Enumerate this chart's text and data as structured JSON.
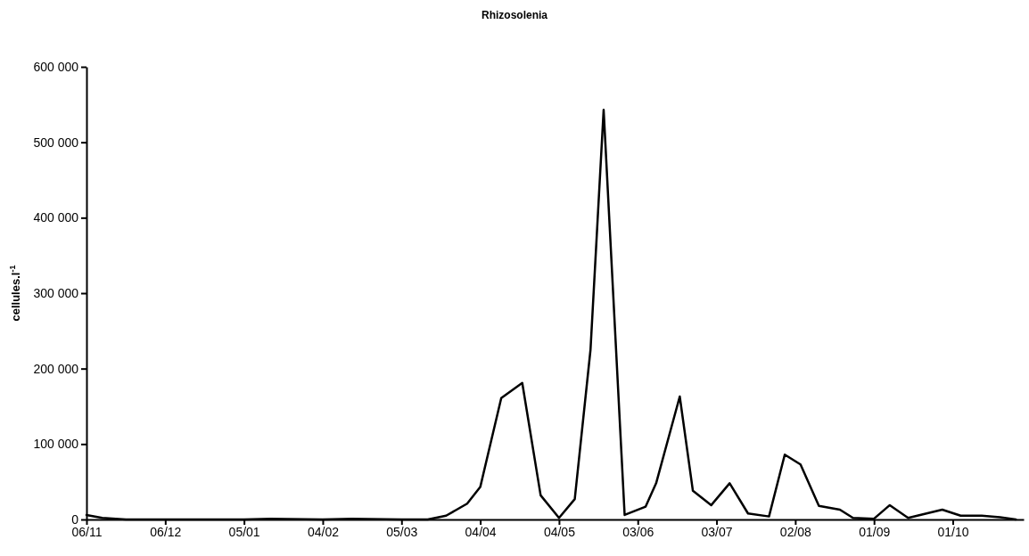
{
  "chart_data": {
    "type": "line",
    "title": "Rhizosolenia",
    "ylabel": "cellules.l$^{-1}$",
    "x": [
      "2007-11-06",
      "2007-11-12",
      "2007-11-21",
      "2007-12-06",
      "2008-01-05",
      "2008-01-15",
      "2008-02-04",
      "2008-02-15",
      "2008-03-05",
      "2008-03-15",
      "2008-03-22",
      "2008-03-30",
      "2008-04-04",
      "2008-04-12",
      "2008-04-20",
      "2008-04-27",
      "2008-05-04",
      "2008-05-10",
      "2008-05-16",
      "2008-05-21",
      "2008-05-29",
      "2008-06-06",
      "2008-06-10",
      "2008-06-19",
      "2008-06-24",
      "2008-07-01",
      "2008-07-08",
      "2008-07-15",
      "2008-07-23",
      "2008-07-29",
      "2008-08-04",
      "2008-08-11",
      "2008-08-19",
      "2008-08-24",
      "2008-09-01",
      "2008-09-07",
      "2008-09-14",
      "2008-09-21",
      "2008-09-27",
      "2008-10-04",
      "2008-10-12",
      "2008-10-19",
      "2008-10-25"
    ],
    "series": [
      {
        "color": "#000000",
        "values": [
          6000,
          2000,
          0,
          0,
          0,
          1000,
          0,
          1000,
          0,
          0,
          5000,
          21000,
          43000,
          161000,
          181000,
          32000,
          2000,
          27000,
          225000,
          543000,
          6000,
          17000,
          48000,
          163000,
          38000,
          19000,
          48000,
          8000,
          4000,
          86000,
          73000,
          18000,
          13000,
          2000,
          1000,
          19000,
          2000,
          8000,
          13000,
          5000,
          5000,
          3000,
          0
        ]
      }
    ],
    "xlim": [
      "2007-11-06",
      "2008-10-28"
    ],
    "xticks": [
      {
        "value": "2007-11-06",
        "label": "06/11"
      },
      {
        "value": "2007-12-06",
        "label": "06/12"
      },
      {
        "value": "2008-01-05",
        "label": "05/01"
      },
      {
        "value": "2008-02-04",
        "label": "04/02"
      },
      {
        "value": "2008-03-05",
        "label": "05/03"
      },
      {
        "value": "2008-04-04",
        "label": "04/04"
      },
      {
        "value": "2008-05-04",
        "label": "04/05"
      },
      {
        "value": "2008-06-03",
        "label": "03/06"
      },
      {
        "value": "2008-07-03",
        "label": "03/07"
      },
      {
        "value": "2008-08-02",
        "label": "02/08"
      },
      {
        "value": "2008-09-01",
        "label": "01/09"
      },
      {
        "value": "2008-10-01",
        "label": "01/10"
      }
    ],
    "ylim": [
      0,
      600000
    ],
    "yticks": [
      {
        "value": 0,
        "label": "0"
      },
      {
        "value": 100000,
        "label": "100 000"
      },
      {
        "value": 200000,
        "label": "200 000"
      },
      {
        "value": 300000,
        "label": "300 000"
      },
      {
        "value": 400000,
        "label": "400 000"
      },
      {
        "value": 500000,
        "label": "500 000"
      },
      {
        "value": 600000,
        "label": "600 000"
      }
    ],
    "grid": false,
    "marker": "none",
    "line_style": "solid"
  }
}
